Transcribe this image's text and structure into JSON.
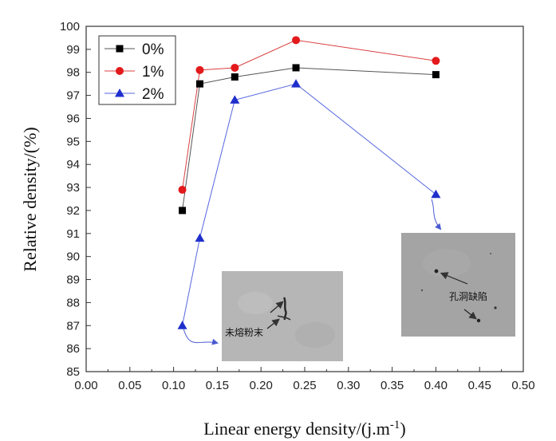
{
  "chart_data": {
    "type": "line",
    "xlabel": "Linear energy density/(j.m",
    "xlabel_sup": "-1",
    "xlabel_suffix": ")",
    "ylabel": "Relative density/(%)",
    "xlim": [
      0.0,
      0.5
    ],
    "ylim": [
      85,
      100
    ],
    "x_ticks": [
      "0.00",
      "0.05",
      "0.10",
      "0.15",
      "0.20",
      "0.25",
      "0.30",
      "0.35",
      "0.40",
      "0.45",
      "0.50"
    ],
    "y_ticks": [
      "85",
      "86",
      "87",
      "88",
      "89",
      "90",
      "91",
      "92",
      "93",
      "94",
      "95",
      "96",
      "97",
      "98",
      "99",
      "100"
    ],
    "grid": false,
    "legend_position": "top-left",
    "series": [
      {
        "name": "0%",
        "color": "#000000",
        "marker": "square",
        "line_color": "#555555",
        "x": [
          0.11,
          0.13,
          0.17,
          0.24,
          0.4
        ],
        "y": [
          92.0,
          97.5,
          97.8,
          98.2,
          97.9
        ]
      },
      {
        "name": "1%",
        "color": "#e31a1c",
        "marker": "circle",
        "line_color": "#d94040",
        "x": [
          0.11,
          0.13,
          0.17,
          0.24,
          0.4
        ],
        "y": [
          92.9,
          98.1,
          98.2,
          99.4,
          98.5
        ]
      },
      {
        "name": "2%",
        "color": "#1f2fcc",
        "marker": "triangle",
        "line_color": "#5566dd",
        "x": [
          0.11,
          0.13,
          0.17,
          0.24,
          0.4
        ],
        "y": [
          87.0,
          90.8,
          96.8,
          97.5,
          92.7
        ]
      }
    ],
    "insets": [
      {
        "label": "未熔粉末",
        "background": "#b4b4b4"
      },
      {
        "label": "孔洞缺陷",
        "background": "#a3a3a3"
      }
    ]
  }
}
